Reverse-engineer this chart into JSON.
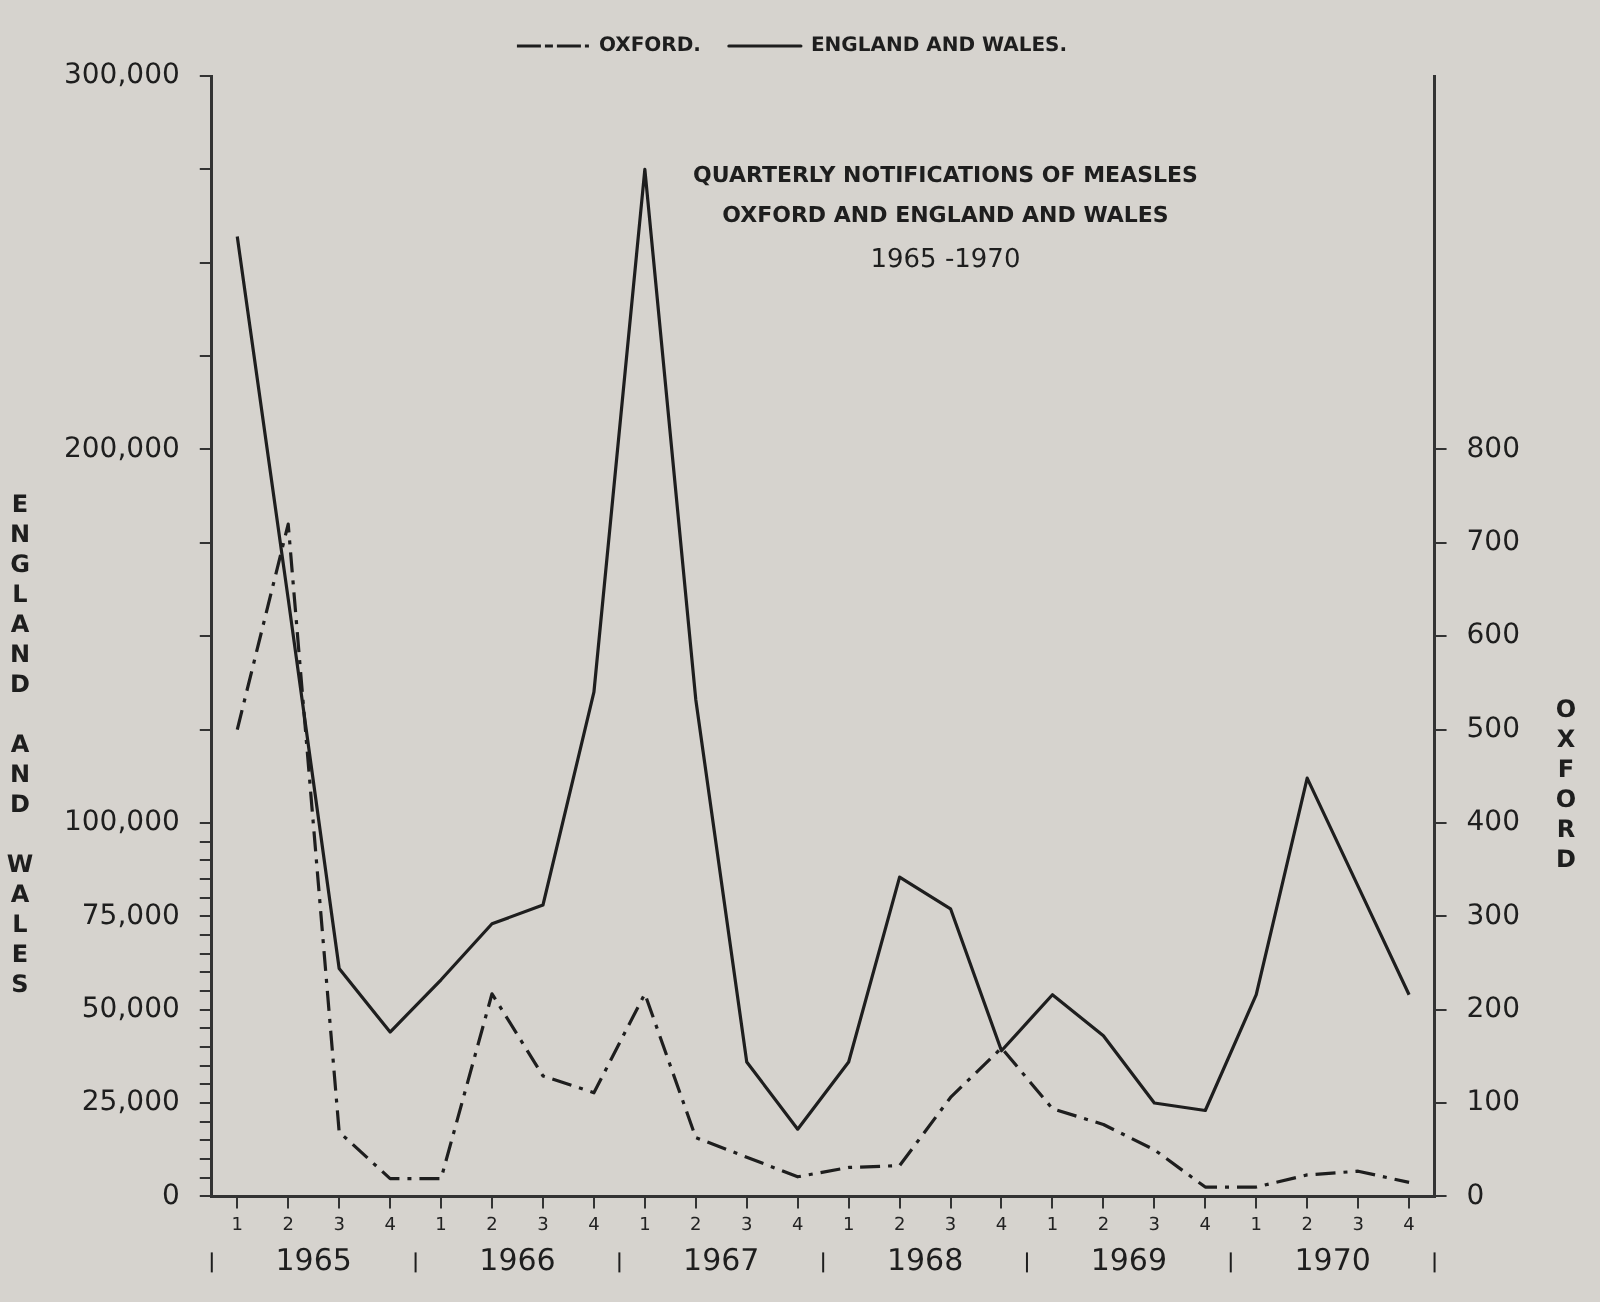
{
  "chart_data": {
    "type": "line",
    "title": "QUARTERLY NOTIFICATIONS OF MEASLES",
    "subtitle": "OXFORD AND ENGLAND AND WALES\n1965 -1970",
    "ylabel": "ENGLAND AND WALES",
    "y2label": "OXFORD",
    "categories": [
      "1",
      "2",
      "3",
      "4",
      "1",
      "2",
      "3",
      "4",
      "1",
      "2",
      "3",
      "4",
      "1",
      "2",
      "3",
      "4",
      "1",
      "2",
      "3",
      "4",
      "1",
      "2",
      "3",
      "4"
    ],
    "annotations": [
      "1965",
      "1966",
      "1967",
      "1968",
      "1969",
      "1970"
    ],
    "series": [
      {
        "name": "OXFORD.",
        "color": "#1e1e1e",
        "axis": "y2",
        "line_style": "dashed",
        "values": [
          500,
          720,
          69,
          19,
          19,
          217,
          129,
          111,
          217,
          63,
          42,
          21,
          31,
          33,
          106,
          159,
          94,
          77,
          50,
          10,
          10,
          23,
          27,
          15
        ]
      },
      {
        "name": "ENGLAND AND WALES.",
        "color": "#1e1e1e",
        "axis": "y",
        "line_style": "solid",
        "values": [
          257000,
          160000,
          61000,
          44000,
          58000,
          73000,
          78000,
          135000,
          275000,
          133000,
          36000,
          18000,
          36000,
          85500,
          77000,
          39000,
          54000,
          43000,
          25000,
          23000,
          54000,
          112000,
          83000,
          54000
        ]
      }
    ],
    "ylim": [
      0,
      300000
    ],
    "yticks": [
      {
        "value": 0,
        "label": "0"
      },
      {
        "value": 5000,
        "label": null
      },
      {
        "value": 10000,
        "label": null
      },
      {
        "value": 15000,
        "label": null
      },
      {
        "value": 20000,
        "label": null
      },
      {
        "value": 25000,
        "label": "25,000"
      },
      {
        "value": 30000,
        "label": null
      },
      {
        "value": 35000,
        "label": null
      },
      {
        "value": 40000,
        "label": null
      },
      {
        "value": 45000,
        "label": null
      },
      {
        "value": 50000,
        "label": "50,000"
      },
      {
        "value": 55000,
        "label": null
      },
      {
        "value": 60000,
        "label": null
      },
      {
        "value": 65000,
        "label": null
      },
      {
        "value": 70000,
        "label": null
      },
      {
        "value": 75000,
        "label": "75,000"
      },
      {
        "value": 80000,
        "label": null
      },
      {
        "value": 85000,
        "label": null
      },
      {
        "value": 90000,
        "label": null
      },
      {
        "value": 95000,
        "label": null
      },
      {
        "value": 100000,
        "label": "100,000"
      },
      {
        "value": 125000,
        "label": null
      },
      {
        "value": 150000,
        "label": null
      },
      {
        "value": 175000,
        "label": null
      },
      {
        "value": 200000,
        "label": "200,000"
      },
      {
        "value": 225000,
        "label": null
      },
      {
        "value": 250000,
        "label": null
      },
      {
        "value": 275000,
        "label": null
      },
      {
        "value": 300000,
        "label": "300,000"
      }
    ],
    "y2lim": [
      0,
      1200
    ],
    "y2ticks": [
      0,
      100,
      200,
      300,
      400,
      500,
      600,
      700,
      800
    ],
    "grid": false,
    "legend": "top",
    "marker": "none"
  }
}
